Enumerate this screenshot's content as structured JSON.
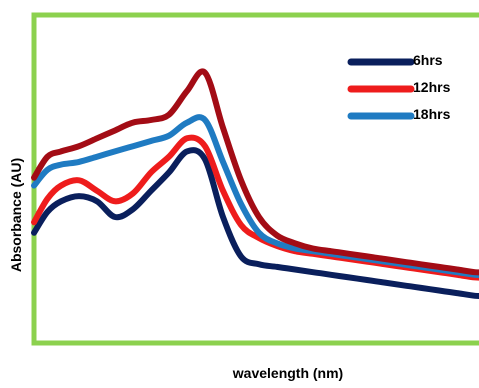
{
  "chart_data": {
    "type": "line",
    "title": "",
    "xlabel": "wavelength (nm)",
    "ylabel": "Absorbance (AU)",
    "grid": false,
    "legend_position": "top-right",
    "frame_color": "#8cd14e",
    "x": [
      0,
      3,
      6,
      10,
      14,
      18,
      22,
      26,
      30,
      34,
      38,
      42,
      46,
      50,
      54,
      58,
      62,
      66,
      70,
      74,
      78,
      82,
      86,
      90,
      94,
      98,
      100
    ],
    "series": [
      {
        "name": "6hrs",
        "color": "#0a1f5c",
        "values": [
          0.42,
          0.5,
          0.54,
          0.56,
          0.54,
          0.48,
          0.51,
          0.58,
          0.65,
          0.73,
          0.7,
          0.48,
          0.33,
          0.3,
          0.29,
          0.28,
          0.27,
          0.26,
          0.25,
          0.24,
          0.23,
          0.22,
          0.21,
          0.2,
          0.19,
          0.18,
          0.18
        ]
      },
      {
        "name": "12hrs",
        "color": "#ee1c1c",
        "values": [
          0.46,
          0.55,
          0.6,
          0.62,
          0.58,
          0.54,
          0.57,
          0.65,
          0.71,
          0.78,
          0.75,
          0.58,
          0.45,
          0.4,
          0.37,
          0.35,
          0.34,
          0.33,
          0.32,
          0.31,
          0.3,
          0.29,
          0.28,
          0.27,
          0.26,
          0.25,
          0.25
        ]
      },
      {
        "name": "18hrs",
        "color": "#1f7bc2",
        "values": [
          0.6,
          0.66,
          0.68,
          0.69,
          0.71,
          0.73,
          0.75,
          0.77,
          0.79,
          0.84,
          0.85,
          0.69,
          0.53,
          0.42,
          0.38,
          0.36,
          0.35,
          0.34,
          0.33,
          0.32,
          0.31,
          0.3,
          0.29,
          0.28,
          0.27,
          0.26,
          0.26
        ]
      },
      {
        "name": "",
        "color": "#a30c15",
        "values": [
          0.63,
          0.71,
          0.73,
          0.75,
          0.78,
          0.81,
          0.84,
          0.85,
          0.87,
          0.96,
          1.03,
          0.82,
          0.62,
          0.48,
          0.41,
          0.38,
          0.36,
          0.35,
          0.34,
          0.33,
          0.32,
          0.31,
          0.3,
          0.29,
          0.28,
          0.27,
          0.27
        ]
      }
    ],
    "legend": [
      "6hrs",
      "12hrs",
      "18hrs"
    ]
  }
}
